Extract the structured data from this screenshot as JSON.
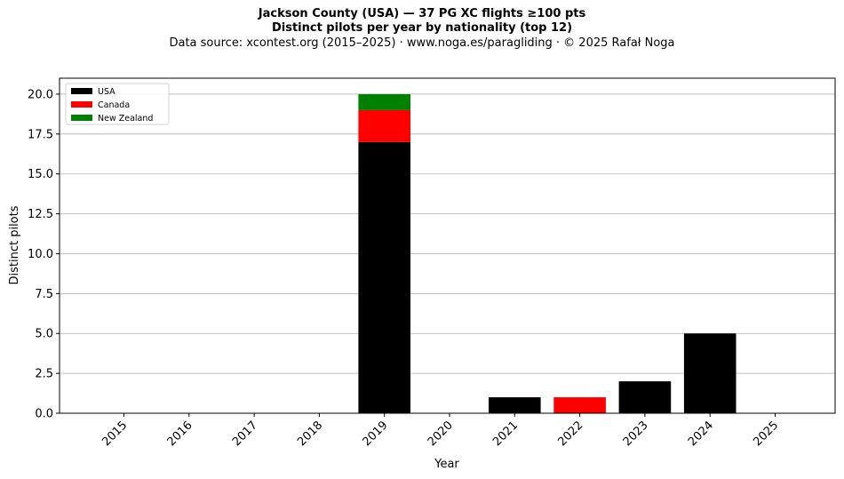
{
  "title_line1": "Jackson County (USA)  —  37 PG XC flights ≥100 pts",
  "title_line2": "Distinct pilots per year by nationality (top 12)",
  "title_line3": "Data source: xcontest.org (2015–2025)  ·  www.noga.es/paragliding  ·  © 2025 Rafał Noga",
  "chart_data": {
    "type": "bar",
    "stacked": true,
    "categories": [
      "2015",
      "2016",
      "2017",
      "2018",
      "2019",
      "2020",
      "2021",
      "2022",
      "2023",
      "2024",
      "2025"
    ],
    "series": [
      {
        "name": "USA",
        "color": "#000000",
        "values": [
          0,
          0,
          0,
          0,
          17,
          0,
          1,
          0,
          2,
          5,
          0
        ]
      },
      {
        "name": "Canada",
        "color": "#ff0000",
        "values": [
          0,
          0,
          0,
          0,
          2,
          0,
          0,
          1,
          0,
          0,
          0
        ]
      },
      {
        "name": "New Zealand",
        "color": "#008000",
        "values": [
          0,
          0,
          0,
          0,
          1,
          0,
          0,
          0,
          0,
          0,
          0
        ]
      }
    ],
    "xlabel": "Year",
    "ylabel": "Distinct pilots",
    "ylim": [
      0,
      21
    ],
    "yticks": [
      0,
      2.5,
      5,
      7.5,
      10,
      12.5,
      15,
      17.5,
      20
    ],
    "ytick_labels": [
      "0.0",
      "2.5",
      "5.0",
      "7.5",
      "10.0",
      "12.5",
      "15.0",
      "17.5",
      "20.0"
    ],
    "grid": "y",
    "legend": "upper-left"
  }
}
